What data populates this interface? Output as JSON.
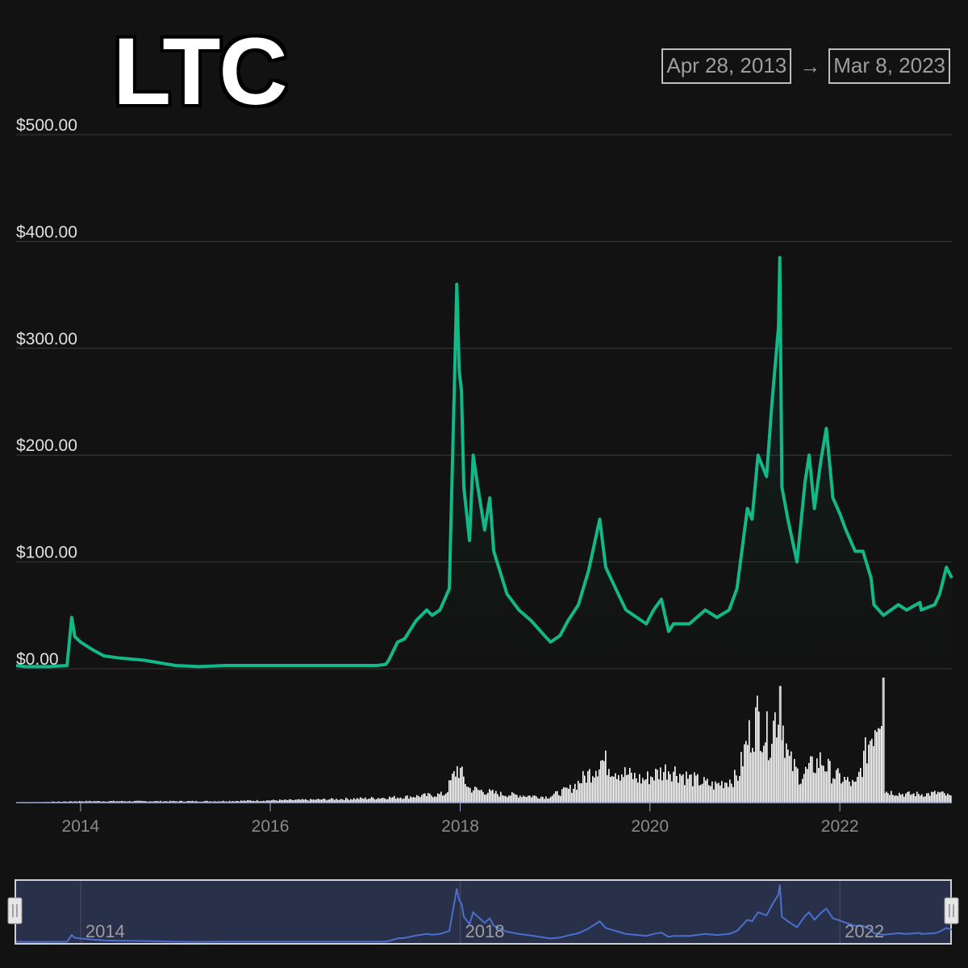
{
  "header": {
    "ticker": "LTC",
    "start_date": "Apr 28, 2013",
    "end_date": "Mar 8, 2023",
    "arrow": "→"
  },
  "colors": {
    "background": "#121212",
    "price_line": "#12b886",
    "volume": "#ffffff",
    "navigator_line": "#4a6fcf",
    "navigator_fill": "#29304a"
  },
  "chart_data": {
    "type": "line",
    "series": [
      {
        "name": "price",
        "x": [
          "2013-04-28",
          "2013-06-01",
          "2013-09-01",
          "2013-11-10",
          "2013-11-28",
          "2013-12-10",
          "2014-01-01",
          "2014-02-15",
          "2014-04-01",
          "2014-06-01",
          "2014-09-01",
          "2015-01-01",
          "2015-04-01",
          "2015-07-10",
          "2015-10-01",
          "2016-01-01",
          "2016-06-01",
          "2016-11-01",
          "2017-02-15",
          "2017-03-20",
          "2017-04-01",
          "2017-05-05",
          "2017-06-01",
          "2017-07-15",
          "2017-08-25",
          "2017-09-15",
          "2017-10-15",
          "2017-11-20",
          "2017-12-08",
          "2017-12-19",
          "2017-12-28",
          "2018-01-06",
          "2018-01-15",
          "2018-02-06",
          "2018-02-20",
          "2018-03-10",
          "2018-04-05",
          "2018-04-25",
          "2018-05-10",
          "2018-06-30",
          "2018-08-15",
          "2018-10-01",
          "2018-11-25",
          "2018-12-15",
          "2019-01-20",
          "2019-02-20",
          "2019-04-01",
          "2019-05-10",
          "2019-06-22",
          "2019-07-15",
          "2019-09-01",
          "2019-10-01",
          "2019-12-18",
          "2020-01-15",
          "2020-02-14",
          "2020-03-13",
          "2020-04-01",
          "2020-06-01",
          "2020-08-01",
          "2020-09-15",
          "2020-11-01",
          "2020-12-01",
          "2021-01-10",
          "2021-01-28",
          "2021-02-20",
          "2021-03-25",
          "2021-04-15",
          "2021-05-10",
          "2021-05-15",
          "2021-05-23",
          "2021-06-15",
          "2021-07-20",
          "2021-08-20",
          "2021-09-05",
          "2021-09-25",
          "2021-10-20",
          "2021-11-10",
          "2021-12-05",
          "2022-01-01",
          "2022-01-24",
          "2022-03-01",
          "2022-03-31",
          "2022-05-01",
          "2022-05-12",
          "2022-06-18",
          "2022-08-14",
          "2022-09-15",
          "2022-11-05",
          "2022-11-10",
          "2023-01-01",
          "2023-01-20",
          "2023-02-15",
          "2023-03-08"
        ],
        "y": [
          3,
          2,
          2,
          3,
          48,
          30,
          25,
          18,
          12,
          10,
          8,
          3,
          2,
          3,
          3,
          3,
          3,
          3,
          3,
          4,
          8,
          25,
          28,
          45,
          55,
          50,
          55,
          75,
          250,
          360,
          280,
          260,
          170,
          120,
          200,
          170,
          130,
          160,
          110,
          70,
          55,
          45,
          30,
          25,
          31,
          45,
          60,
          92,
          140,
          95,
          70,
          55,
          42,
          55,
          65,
          35,
          42,
          42,
          55,
          48,
          55,
          75,
          150,
          140,
          200,
          180,
          250,
          320,
          385,
          170,
          140,
          100,
          175,
          200,
          150,
          195,
          225,
          160,
          145,
          130,
          110,
          110,
          85,
          60,
          50,
          60,
          55,
          62,
          55,
          60,
          70,
          95,
          85
        ]
      },
      {
        "name": "volume",
        "x": [
          "2013-04-28",
          "2014-01-01",
          "2015-06-01",
          "2016-06-01",
          "2017-01-01",
          "2017-06-01",
          "2017-11-01",
          "2017-12-20",
          "2018-02-01",
          "2018-06-01",
          "2018-12-01",
          "2019-03-01",
          "2019-05-20",
          "2019-06-25",
          "2019-09-01",
          "2019-12-01",
          "2020-03-13",
          "2020-06-01",
          "2020-09-01",
          "2020-12-01",
          "2021-01-10",
          "2021-02-15",
          "2021-04-01",
          "2021-05-12",
          "2021-06-15",
          "2021-08-01",
          "2021-09-10",
          "2021-10-20",
          "2021-12-01",
          "2022-03-01",
          "2022-06-13",
          "2022-06-20",
          "2022-09-01",
          "2022-12-01",
          "2023-01-15",
          "2023-03-08"
        ],
        "y": [
          0,
          1,
          1,
          2,
          3,
          4,
          6,
          25,
          10,
          6,
          4,
          10,
          22,
          30,
          22,
          16,
          24,
          17,
          12,
          18,
          45,
          60,
          45,
          70,
          30,
          18,
          25,
          30,
          20,
          12,
          75,
          8,
          6,
          6,
          7,
          4
        ]
      }
    ],
    "x_ticks": [
      "2014",
      "2016",
      "2018",
      "2020",
      "2022"
    ],
    "y_ticks": [
      "$0.00",
      "$100.00",
      "$200.00",
      "$300.00",
      "$400.00",
      "$500.00"
    ],
    "ylim": [
      0,
      500
    ],
    "xlim": [
      "2013-04-28",
      "2023-03-08"
    ],
    "navigator_ticks": [
      "2014",
      "2018",
      "2022"
    ],
    "grid": true,
    "legend": "none"
  }
}
